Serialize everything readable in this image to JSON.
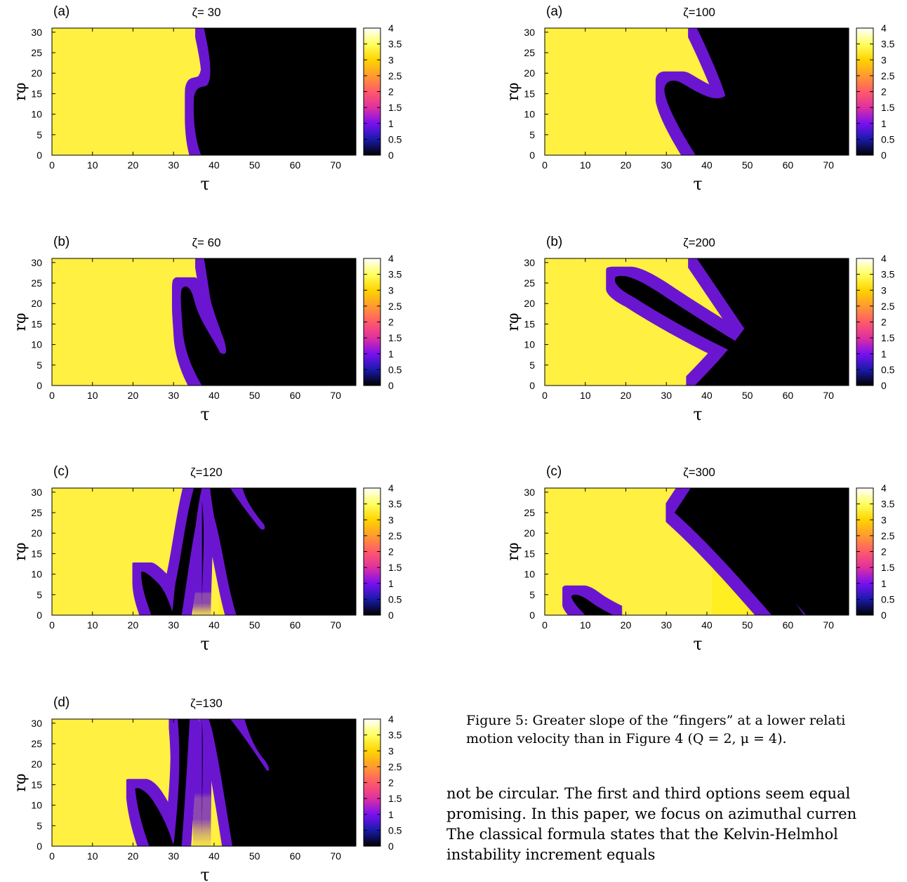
{
  "panels": [
    {
      "label": "(a)",
      "title": "ζ= 30"
    },
    {
      "label": "(a)",
      "title": "ζ=100"
    },
    {
      "label": "(b)",
      "title": "ζ= 60"
    },
    {
      "label": "(b)",
      "title": "ζ=200"
    },
    {
      "label": "(c)",
      "title": "ζ=120"
    },
    {
      "label": "(c)",
      "title": "ζ=300"
    },
    {
      "label": "(d)",
      "title": "ζ=130"
    }
  ],
  "chart_data": {
    "type": "heatmap",
    "xlabel": "τ",
    "ylabel": "rφ",
    "xlim": [
      0,
      75
    ],
    "ylim": [
      0,
      31
    ],
    "x_ticks": [
      "0",
      "10",
      "20",
      "30",
      "40",
      "50",
      "60",
      "70"
    ],
    "y_ticks": [
      "0",
      "5",
      "10",
      "15",
      "20",
      "25",
      "30"
    ],
    "colorbar": {
      "range": [
        0,
        4
      ],
      "ticks": [
        "0",
        "0.5",
        "1",
        "1.5",
        "2",
        "2.5",
        "3",
        "3.5",
        "4"
      ],
      "colors": [
        "#000000",
        "#1a1aaa",
        "#7a10f0",
        "#e030a0",
        "#ff5a6a",
        "#ff9a30",
        "#ffd400",
        "#ffff60",
        "#ffffff"
      ]
    }
  },
  "text": {
    "caption": [
      "Figure 5: Greater slope of the “fingers” at a lower relati",
      "motion velocity than in Figure 4 (Q = 2, μ = 4)."
    ],
    "body": [
      "not be circular. The first and third options seem equal",
      "promising. In this paper, we focus on azimuthal curren",
      "   The classical formula states that the Kelvin-Helmhol",
      "instability increment equals"
    ]
  }
}
